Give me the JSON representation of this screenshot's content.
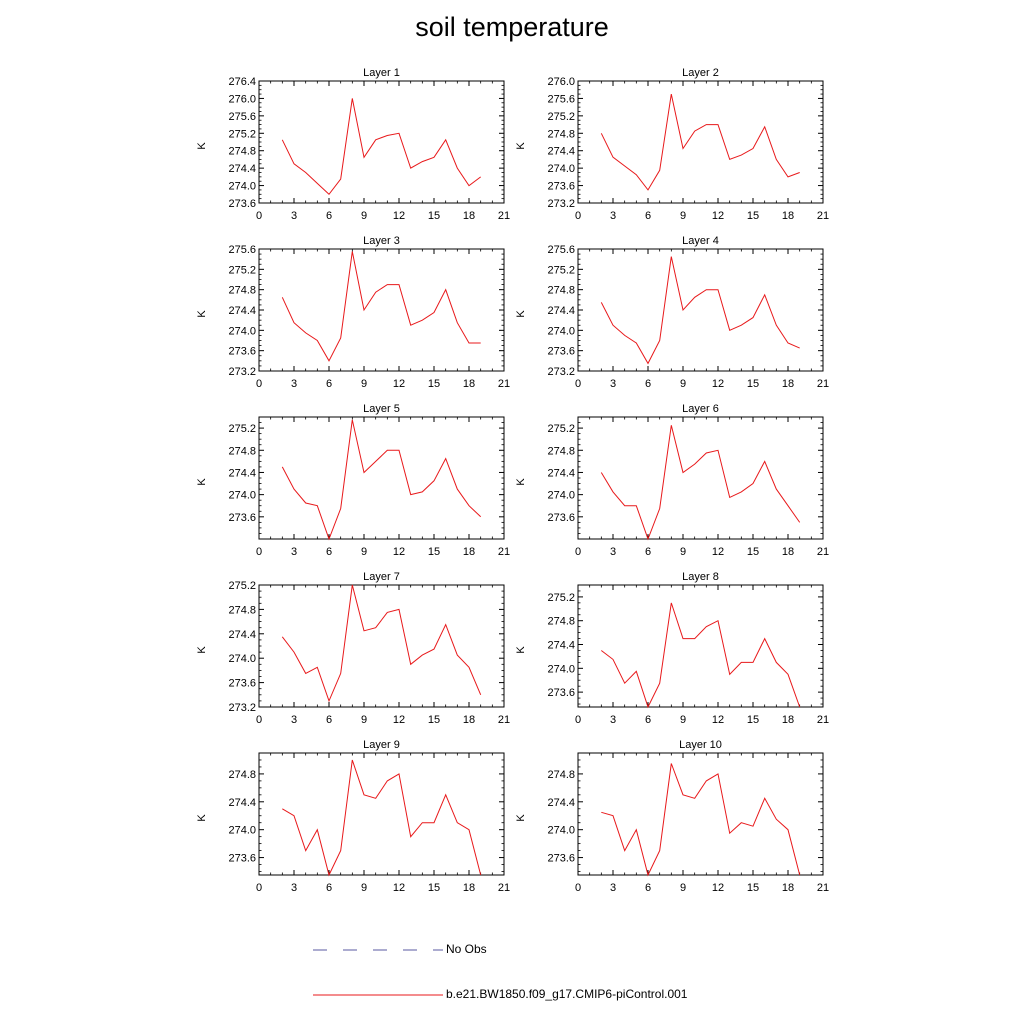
{
  "title": "soil temperature",
  "colors": {
    "series": "#e8191b",
    "no_obs": "#5a5aa0",
    "axis": "#000000"
  },
  "legend": {
    "no_obs_label": "No Obs",
    "series_label": "b.e21.BW1850.f09_g17.CMIP6-piControl.001"
  },
  "chart_data": [
    {
      "type": "line",
      "title": "Layer 1",
      "ylabel": "K",
      "xlim": [
        0,
        21
      ],
      "ylim": [
        273.6,
        276.4
      ],
      "xticks": [
        0,
        3,
        6,
        9,
        12,
        15,
        18,
        21
      ],
      "yticks": [
        273.6,
        274.0,
        274.4,
        274.8,
        275.2,
        275.6,
        276.0,
        276.4
      ],
      "ytick_labels": [
        "273.6",
        "274.0",
        "274.4",
        "274.8",
        "275.2",
        "275.6",
        "276.0",
        "276.4"
      ],
      "series": [
        {
          "name": "b.e21.BW1850.f09_g17.CMIP6-piControl.001",
          "x": [
            2,
            3,
            4,
            5,
            6,
            7,
            8,
            9,
            10,
            11,
            12,
            13,
            14,
            15,
            16,
            17,
            18,
            19
          ],
          "y": [
            275.05,
            274.5,
            274.3,
            274.05,
            273.8,
            274.15,
            276.0,
            274.65,
            275.05,
            275.15,
            275.2,
            274.4,
            274.55,
            274.65,
            275.05,
            274.4,
            274.0,
            274.2
          ]
        }
      ]
    },
    {
      "type": "line",
      "title": "Layer 2",
      "ylabel": "K",
      "xlim": [
        0,
        21
      ],
      "ylim": [
        273.2,
        276.0
      ],
      "xticks": [
        0,
        3,
        6,
        9,
        12,
        15,
        18,
        21
      ],
      "yticks": [
        273.2,
        273.6,
        274.0,
        274.4,
        274.8,
        275.2,
        275.6,
        276.0
      ],
      "ytick_labels": [
        "273.2",
        "273.6",
        "274.0",
        "274.4",
        "274.8",
        "275.2",
        "275.6",
        "276.0"
      ],
      "series": [
        {
          "name": "b.e21.BW1850.f09_g17.CMIP6-piControl.001",
          "x": [
            2,
            3,
            4,
            5,
            6,
            7,
            8,
            9,
            10,
            11,
            12,
            13,
            14,
            15,
            16,
            17,
            18,
            19
          ],
          "y": [
            274.8,
            274.25,
            274.05,
            273.85,
            273.5,
            273.95,
            275.7,
            274.45,
            274.85,
            275.0,
            275.0,
            274.2,
            274.3,
            274.45,
            274.95,
            274.2,
            273.8,
            273.9
          ]
        }
      ]
    },
    {
      "type": "line",
      "title": "Layer 3",
      "ylabel": "K",
      "xlim": [
        0,
        21
      ],
      "ylim": [
        273.2,
        275.6
      ],
      "xticks": [
        0,
        3,
        6,
        9,
        12,
        15,
        18,
        21
      ],
      "yticks": [
        273.2,
        273.6,
        274.0,
        274.4,
        274.8,
        275.2,
        275.6
      ],
      "ytick_labels": [
        "273.2",
        "273.6",
        "274.0",
        "274.4",
        "274.8",
        "275.2",
        "275.6"
      ],
      "series": [
        {
          "name": "b.e21.BW1850.f09_g17.CMIP6-piControl.001",
          "x": [
            2,
            3,
            4,
            5,
            6,
            7,
            8,
            9,
            10,
            11,
            12,
            13,
            14,
            15,
            16,
            17,
            18,
            19
          ],
          "y": [
            274.65,
            274.15,
            273.95,
            273.8,
            273.4,
            273.85,
            275.55,
            274.4,
            274.75,
            274.9,
            274.9,
            274.1,
            274.2,
            274.35,
            274.8,
            274.15,
            273.75,
            273.75
          ]
        }
      ]
    },
    {
      "type": "line",
      "title": "Layer 4",
      "ylabel": "K",
      "xlim": [
        0,
        21
      ],
      "ylim": [
        273.2,
        275.6
      ],
      "xticks": [
        0,
        3,
        6,
        9,
        12,
        15,
        18,
        21
      ],
      "yticks": [
        273.2,
        273.6,
        274.0,
        274.4,
        274.8,
        275.2,
        275.6
      ],
      "ytick_labels": [
        "273.2",
        "273.6",
        "274.0",
        "274.4",
        "274.8",
        "275.2",
        "275.6"
      ],
      "series": [
        {
          "name": "b.e21.BW1850.f09_g17.CMIP6-piControl.001",
          "x": [
            2,
            3,
            4,
            5,
            6,
            7,
            8,
            9,
            10,
            11,
            12,
            13,
            14,
            15,
            16,
            17,
            18,
            19
          ],
          "y": [
            274.55,
            274.1,
            273.9,
            273.75,
            273.35,
            273.8,
            275.45,
            274.4,
            274.65,
            274.8,
            274.8,
            274.0,
            274.1,
            274.25,
            274.7,
            274.1,
            273.75,
            273.65
          ]
        }
      ]
    },
    {
      "type": "line",
      "title": "Layer 5",
      "ylabel": "K",
      "xlim": [
        0,
        21
      ],
      "ylim": [
        273.2,
        275.4
      ],
      "xticks": [
        0,
        3,
        6,
        9,
        12,
        15,
        18,
        21
      ],
      "yticks": [
        273.6,
        274.0,
        274.4,
        274.8,
        275.2
      ],
      "ytick_labels": [
        "273.6",
        "274.0",
        "274.4",
        "274.8",
        "275.2"
      ],
      "series": [
        {
          "name": "b.e21.BW1850.f09_g17.CMIP6-piControl.001",
          "x": [
            2,
            3,
            4,
            5,
            6,
            7,
            8,
            9,
            10,
            11,
            12,
            13,
            14,
            15,
            16,
            17,
            18,
            19
          ],
          "y": [
            274.5,
            274.1,
            273.85,
            273.8,
            273.2,
            273.75,
            275.35,
            274.4,
            274.6,
            274.8,
            274.8,
            274.0,
            274.05,
            274.25,
            274.65,
            274.1,
            273.8,
            273.6
          ]
        }
      ]
    },
    {
      "type": "line",
      "title": "Layer 6",
      "ylabel": "K",
      "xlim": [
        0,
        21
      ],
      "ylim": [
        273.2,
        275.4
      ],
      "xticks": [
        0,
        3,
        6,
        9,
        12,
        15,
        18,
        21
      ],
      "yticks": [
        273.6,
        274.0,
        274.4,
        274.8,
        275.2
      ],
      "ytick_labels": [
        "273.6",
        "274.0",
        "274.4",
        "274.8",
        "275.2"
      ],
      "series": [
        {
          "name": "b.e21.BW1850.f09_g17.CMIP6-piControl.001",
          "x": [
            2,
            3,
            4,
            5,
            6,
            7,
            8,
            9,
            10,
            11,
            12,
            13,
            14,
            15,
            16,
            17,
            18,
            19
          ],
          "y": [
            274.4,
            274.05,
            273.8,
            273.8,
            273.2,
            273.75,
            275.25,
            274.4,
            274.55,
            274.75,
            274.8,
            273.95,
            274.05,
            274.2,
            274.6,
            274.1,
            273.8,
            273.5
          ]
        }
      ]
    },
    {
      "type": "line",
      "title": "Layer 7",
      "ylabel": "K",
      "xlim": [
        0,
        21
      ],
      "ylim": [
        273.2,
        275.2
      ],
      "xticks": [
        0,
        3,
        6,
        9,
        12,
        15,
        18,
        21
      ],
      "yticks": [
        273.2,
        273.6,
        274.0,
        274.4,
        274.8,
        275.2
      ],
      "ytick_labels": [
        "273.2",
        "273.6",
        "274.0",
        "274.4",
        "274.8",
        "275.2"
      ],
      "series": [
        {
          "name": "b.e21.BW1850.f09_g17.CMIP6-piControl.001",
          "x": [
            2,
            3,
            4,
            5,
            6,
            7,
            8,
            9,
            10,
            11,
            12,
            13,
            14,
            15,
            16,
            17,
            18,
            19
          ],
          "y": [
            274.35,
            274.1,
            273.75,
            273.85,
            273.3,
            273.75,
            275.2,
            274.45,
            274.5,
            274.75,
            274.8,
            273.9,
            274.05,
            274.15,
            274.55,
            274.05,
            273.85,
            273.4
          ]
        }
      ]
    },
    {
      "type": "line",
      "title": "Layer 8",
      "ylabel": "K",
      "xlim": [
        0,
        21
      ],
      "ylim": [
        273.35,
        275.4
      ],
      "xticks": [
        0,
        3,
        6,
        9,
        12,
        15,
        18,
        21
      ],
      "yticks": [
        273.6,
        274.0,
        274.4,
        274.8,
        275.2
      ],
      "ytick_labels": [
        "273.6",
        "274.0",
        "274.4",
        "274.8",
        "275.2"
      ],
      "series": [
        {
          "name": "b.e21.BW1850.f09_g17.CMIP6-piControl.001",
          "x": [
            2,
            3,
            4,
            5,
            6,
            7,
            8,
            9,
            10,
            11,
            12,
            13,
            14,
            15,
            16,
            17,
            18,
            19
          ],
          "y": [
            274.3,
            274.15,
            273.75,
            273.95,
            273.35,
            273.75,
            275.1,
            274.5,
            274.5,
            274.7,
            274.8,
            273.9,
            274.1,
            274.1,
            274.5,
            274.1,
            273.9,
            273.35
          ]
        }
      ]
    },
    {
      "type": "line",
      "title": "Layer 9",
      "ylabel": "K",
      "xlim": [
        0,
        21
      ],
      "ylim": [
        273.35,
        275.1
      ],
      "xticks": [
        0,
        3,
        6,
        9,
        12,
        15,
        18,
        21
      ],
      "yticks": [
        273.6,
        274.0,
        274.4,
        274.8
      ],
      "ytick_labels": [
        "273.6",
        "274.0",
        "274.4",
        "274.8"
      ],
      "series": [
        {
          "name": "b.e21.BW1850.f09_g17.CMIP6-piControl.001",
          "x": [
            2,
            3,
            4,
            5,
            6,
            7,
            8,
            9,
            10,
            11,
            12,
            13,
            14,
            15,
            16,
            17,
            18,
            19
          ],
          "y": [
            274.3,
            274.2,
            273.7,
            274.0,
            273.35,
            273.7,
            275.0,
            274.5,
            274.45,
            274.7,
            274.8,
            273.9,
            274.1,
            274.1,
            274.5,
            274.1,
            274.0,
            273.35
          ]
        }
      ]
    },
    {
      "type": "line",
      "title": "Layer 10",
      "ylabel": "K",
      "xlim": [
        0,
        21
      ],
      "ylim": [
        273.35,
        275.1
      ],
      "xticks": [
        0,
        3,
        6,
        9,
        12,
        15,
        18,
        21
      ],
      "yticks": [
        273.6,
        274.0,
        274.4,
        274.8
      ],
      "ytick_labels": [
        "273.6",
        "274.0",
        "274.4",
        "274.8"
      ],
      "series": [
        {
          "name": "b.e21.BW1850.f09_g17.CMIP6-piControl.001",
          "x": [
            2,
            3,
            4,
            5,
            6,
            7,
            8,
            9,
            10,
            11,
            12,
            13,
            14,
            15,
            16,
            17,
            18,
            19
          ],
          "y": [
            274.25,
            274.2,
            273.7,
            274.0,
            273.35,
            273.7,
            274.95,
            274.5,
            274.45,
            274.7,
            274.8,
            273.95,
            274.1,
            274.05,
            274.45,
            274.15,
            274.0,
            273.35
          ]
        }
      ]
    }
  ]
}
